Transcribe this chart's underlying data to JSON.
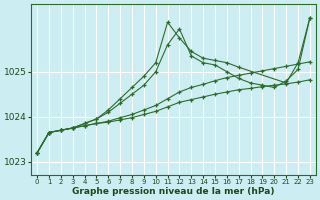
{
  "xlabel": "Graphe pression niveau de la mer (hPa)",
  "background_color": "#cceef2",
  "grid_color": "#ffffff",
  "line_color": "#2d6b2d",
  "xlim": [
    -0.5,
    23.5
  ],
  "ylim": [
    1022.7,
    1026.5
  ],
  "yticks": [
    1023,
    1024,
    1025
  ],
  "xticks": [
    0,
    1,
    2,
    3,
    4,
    5,
    6,
    7,
    8,
    9,
    10,
    11,
    12,
    13,
    14,
    15,
    16,
    17,
    18,
    19,
    20,
    21,
    22,
    23
  ],
  "lines": [
    {
      "x": [
        0,
        1,
        2,
        3,
        4,
        5,
        6,
        7,
        8,
        9,
        10,
        11,
        12,
        13,
        14,
        15,
        16,
        17,
        21,
        22,
        23
      ],
      "y": [
        1023.2,
        1023.65,
        1023.7,
        1023.75,
        1023.85,
        1023.95,
        1024.15,
        1024.4,
        1024.65,
        1024.9,
        1025.2,
        1026.1,
        1025.75,
        1025.45,
        1025.3,
        1025.25,
        1025.2,
        1025.1,
        1024.75,
        1025.2,
        1026.2
      ]
    },
    {
      "x": [
        0,
        1,
        2,
        3,
        4,
        5,
        6,
        7,
        8,
        9,
        10,
        11,
        12,
        13,
        14,
        15,
        16,
        17,
        18,
        19,
        20,
        21,
        22,
        23
      ],
      "y": [
        1023.2,
        1023.65,
        1023.7,
        1023.75,
        1023.85,
        1023.95,
        1024.1,
        1024.3,
        1024.5,
        1024.7,
        1025.0,
        1025.6,
        1025.95,
        1025.35,
        1025.2,
        1025.15,
        1025.0,
        1024.85,
        1024.75,
        1024.7,
        1024.65,
        1024.8,
        1025.05,
        1026.2
      ]
    },
    {
      "x": [
        0,
        1,
        2,
        3,
        4,
        5,
        6,
        7,
        8,
        9,
        10,
        11,
        12,
        13,
        14,
        15,
        16,
        17,
        18,
        19,
        20,
        21,
        22,
        23
      ],
      "y": [
        1023.2,
        1023.65,
        1023.7,
        1023.75,
        1023.8,
        1023.85,
        1023.9,
        1023.98,
        1024.05,
        1024.15,
        1024.25,
        1024.4,
        1024.55,
        1024.65,
        1024.72,
        1024.8,
        1024.87,
        1024.92,
        1024.97,
        1025.02,
        1025.07,
        1025.12,
        1025.17,
        1025.22
      ]
    },
    {
      "x": [
        0,
        1,
        2,
        3,
        4,
        5,
        6,
        7,
        8,
        9,
        10,
        11,
        12,
        13,
        14,
        15,
        16,
        17,
        18,
        19,
        20,
        21,
        22,
        23
      ],
      "y": [
        1023.2,
        1023.65,
        1023.7,
        1023.75,
        1023.8,
        1023.85,
        1023.88,
        1023.93,
        1023.98,
        1024.05,
        1024.12,
        1024.22,
        1024.32,
        1024.38,
        1024.44,
        1024.5,
        1024.55,
        1024.6,
        1024.63,
        1024.67,
        1024.7,
        1024.73,
        1024.77,
        1024.82
      ]
    }
  ]
}
